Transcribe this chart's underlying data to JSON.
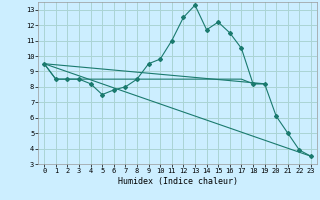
{
  "title": "",
  "xlabel": "Humidex (Indice chaleur)",
  "ylabel": "",
  "bg_color": "#cceeff",
  "grid_color": "#aad4d4",
  "line_color": "#1a7a6e",
  "xlim": [
    -0.5,
    23.5
  ],
  "ylim": [
    3,
    13.5
  ],
  "xticks": [
    0,
    1,
    2,
    3,
    4,
    5,
    6,
    7,
    8,
    9,
    10,
    11,
    12,
    13,
    14,
    15,
    16,
    17,
    18,
    19,
    20,
    21,
    22,
    23
  ],
  "yticks": [
    3,
    4,
    5,
    6,
    7,
    8,
    9,
    10,
    11,
    12,
    13
  ],
  "lines": [
    {
      "x": [
        0,
        1,
        2,
        3,
        4,
        5,
        6,
        7,
        8,
        9,
        10,
        11,
        12,
        13,
        14,
        15,
        16,
        17,
        18,
        19,
        20,
        21,
        22,
        23
      ],
      "y": [
        9.5,
        8.5,
        8.5,
        8.5,
        8.2,
        7.5,
        7.8,
        8.0,
        8.5,
        9.5,
        9.8,
        11.0,
        12.5,
        13.3,
        11.7,
        12.2,
        11.5,
        10.5,
        8.2,
        8.2,
        6.1,
        5.0,
        3.9,
        3.5
      ],
      "marker": "D",
      "markersize": 2.0
    },
    {
      "x": [
        0,
        1,
        2,
        3,
        4,
        5,
        6,
        7,
        8,
        9,
        10,
        11,
        12,
        13,
        14,
        15,
        16,
        17,
        18,
        19
      ],
      "y": [
        9.5,
        8.5,
        8.5,
        8.5,
        8.5,
        8.5,
        8.5,
        8.5,
        8.5,
        8.5,
        8.5,
        8.5,
        8.5,
        8.5,
        8.5,
        8.5,
        8.5,
        8.5,
        8.2,
        8.2
      ],
      "marker": null,
      "markersize": 0
    },
    {
      "comment": "straight line from (0,9.5) to (23,3.5)",
      "x": [
        0,
        23
      ],
      "y": [
        9.5,
        3.5
      ],
      "marker": null,
      "markersize": 0
    },
    {
      "comment": "straight line from (0,9.5) to (19,8.2)",
      "x": [
        0,
        19
      ],
      "y": [
        9.5,
        8.2
      ],
      "marker": null,
      "markersize": 0
    }
  ]
}
